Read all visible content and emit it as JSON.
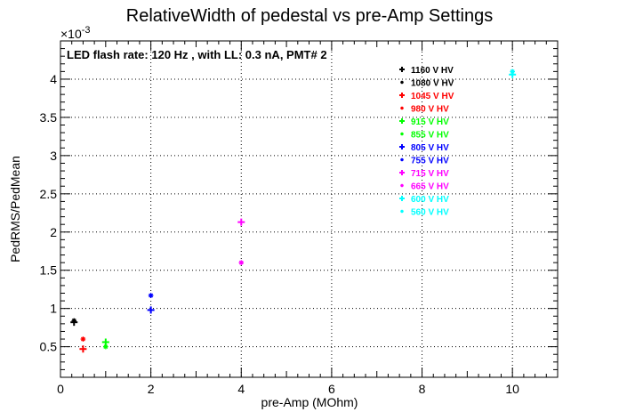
{
  "chart_data": {
    "type": "scatter",
    "title": "RelativeWidth of pedestal vs pre-Amp Settings",
    "xlabel": "pre-Amp (MOhm)",
    "ylabel": "PedRMS/PedMean",
    "y_exponent_label": "×10",
    "y_exponent_power": "-3",
    "annotation": "LED flash rate: 120 Hz , with LL: 0.3 nA, PMT# 2",
    "xlim": [
      0,
      11
    ],
    "ylim": [
      0.1,
      4.5
    ],
    "x_ticks": [
      0,
      2,
      4,
      6,
      8,
      10
    ],
    "y_ticks": [
      0.5,
      1,
      1.5,
      2,
      2.5,
      3,
      3.5,
      4
    ],
    "x_tick_labels": [
      "0",
      "2",
      "4",
      "6",
      "8",
      "10"
    ],
    "y_tick_labels": [
      "0.5",
      "1",
      "1.5",
      "2",
      "2.5",
      "3",
      "3.5",
      "4"
    ],
    "grid": true,
    "legend_position": "top-right",
    "series": [
      {
        "name": "1160 V HV",
        "color": "#000000",
        "marker": "plus",
        "x": [
          0.3
        ],
        "y": [
          0.82
        ]
      },
      {
        "name": "1080 V HV",
        "color": "#000000",
        "marker": "star",
        "x": [
          0.3
        ],
        "y": [
          0.84
        ]
      },
      {
        "name": "1045 V HV",
        "color": "#ff0000",
        "marker": "plus",
        "x": [
          0.5
        ],
        "y": [
          0.47
        ]
      },
      {
        "name": "980 V HV",
        "color": "#ff0000",
        "marker": "star",
        "x": [
          0.5
        ],
        "y": [
          0.6
        ]
      },
      {
        "name": "915 V HV",
        "color": "#00ff00",
        "marker": "plus",
        "x": [
          1.0
        ],
        "y": [
          0.56
        ]
      },
      {
        "name": "855 V HV",
        "color": "#00ff00",
        "marker": "star",
        "x": [
          1.0
        ],
        "y": [
          0.5
        ]
      },
      {
        "name": "805 V HV",
        "color": "#0000ff",
        "marker": "plus",
        "x": [
          2.0
        ],
        "y": [
          0.98
        ]
      },
      {
        "name": "755 V HV",
        "color": "#0000ff",
        "marker": "star",
        "x": [
          2.0
        ],
        "y": [
          1.17
        ]
      },
      {
        "name": "715 V HV",
        "color": "#ff00ff",
        "marker": "plus",
        "x": [
          4.0
        ],
        "y": [
          2.13
        ]
      },
      {
        "name": "665 V HV",
        "color": "#ff00ff",
        "marker": "star",
        "x": [
          4.0
        ],
        "y": [
          1.6
        ]
      },
      {
        "name": "600 V HV",
        "color": "#00ffff",
        "marker": "plus",
        "x": [
          10.0
        ],
        "y": [
          4.06
        ]
      },
      {
        "name": "560 V HV",
        "color": "#00ffff",
        "marker": "star",
        "x": [
          10.0
        ],
        "y": [
          4.1
        ]
      }
    ]
  }
}
